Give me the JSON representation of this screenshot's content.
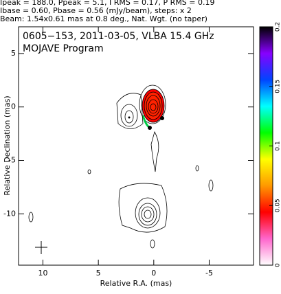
{
  "chart_data": {
    "type": "contour",
    "header": [
      "Ipeak = 188.0, Ppeak = 5.1, I RMS = 0.17, P RMS = 0.19",
      "Ibase = 0.60, Pbase = 0.56 (mJy/beam), steps: x 2",
      "Beam: 1.54x0.61 mas at 0.8 deg., Nat. Wgt. (no taper)"
    ],
    "title": "0605−153, 2011-03-05, VLBA 15.4 GHz",
    "subtitle": "MOJAVE Program",
    "xlabel": "Relative R.A. (mas)",
    "ylabel": "Relative Declination (mas)",
    "xlim": [
      12.2,
      -9
    ],
    "xticks": [
      10,
      5,
      0,
      -5
    ],
    "ylim": [
      -14.8,
      7.5
    ],
    "yticks": [
      5,
      0,
      -5,
      -10
    ],
    "colorbar": {
      "lim": [
        0,
        0.2
      ],
      "ticks": [
        0,
        0.05,
        0.1,
        0.15,
        0.2
      ],
      "colors": [
        "#ffffff",
        "#ff66cc",
        "#ff0000",
        "#ff9900",
        "#ffff00",
        "#00ff00",
        "#00ffff",
        "#0044ff",
        "#8800ff",
        "#000000"
      ]
    }
  }
}
